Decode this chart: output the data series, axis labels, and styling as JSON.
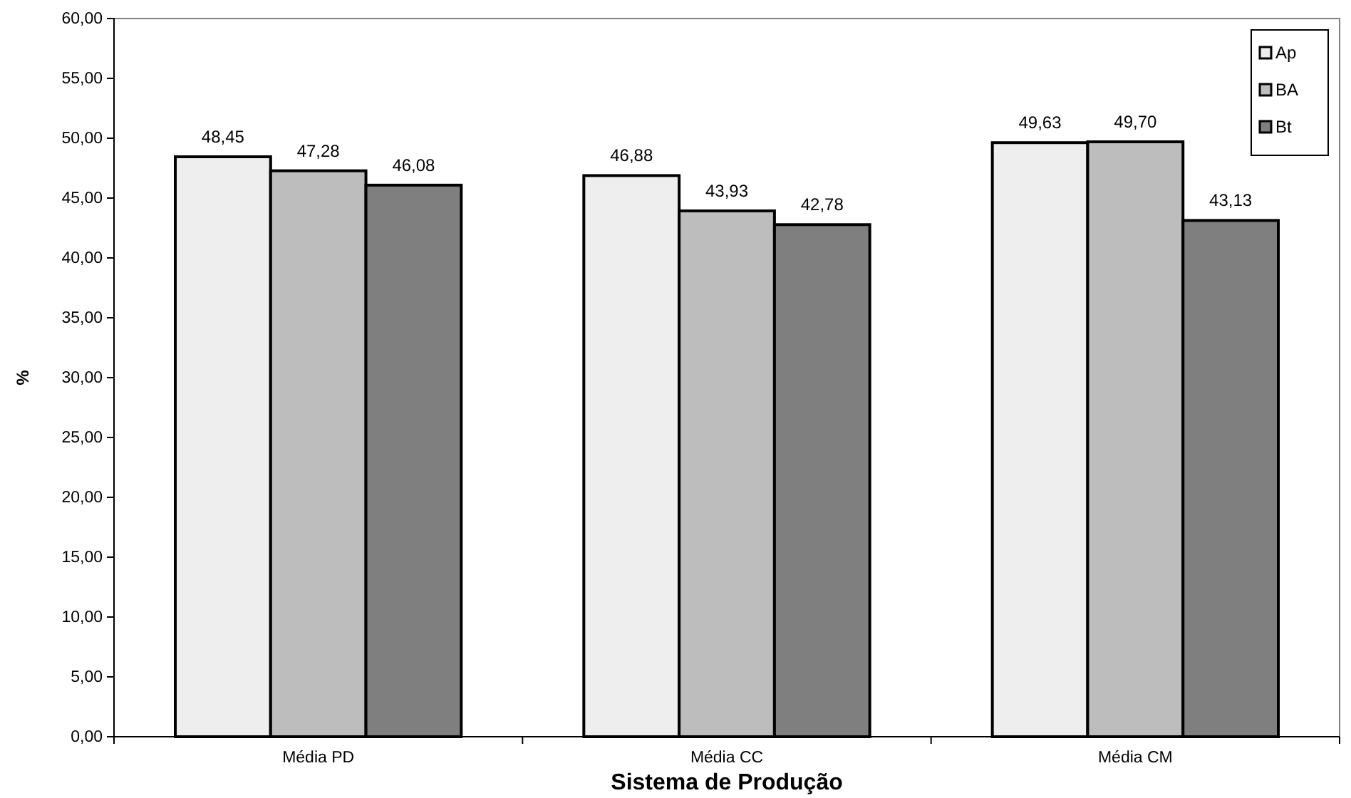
{
  "chart_data": {
    "type": "bar",
    "xlabel": "Sistema de Produção",
    "ylabel": "%",
    "categories": [
      "Média  PD",
      "Média  CC",
      "Média  CM"
    ],
    "series": [
      {
        "name": "Ap",
        "color": "#eeeeee",
        "values": [
          48.45,
          46.88,
          49.63
        ],
        "value_labels": [
          "48,45",
          "46,88",
          "49,63"
        ]
      },
      {
        "name": "BA",
        "color": "#bdbdbd",
        "values": [
          47.28,
          43.93,
          49.7
        ],
        "value_labels": [
          "47,28",
          "43,93",
          "49,70"
        ]
      },
      {
        "name": "Bt",
        "color": "#7f7f7f",
        "values": [
          46.08,
          42.78,
          43.13
        ],
        "value_labels": [
          "46,08",
          "42,78",
          "43,13"
        ]
      }
    ],
    "ylim": [
      0,
      60
    ],
    "yticks": [
      {
        "value": 0,
        "label": "0,00"
      },
      {
        "value": 5,
        "label": "5,00"
      },
      {
        "value": 10,
        "label": "10,00"
      },
      {
        "value": 15,
        "label": "15,00"
      },
      {
        "value": 20,
        "label": "20,00"
      },
      {
        "value": 25,
        "label": "25,00"
      },
      {
        "value": 30,
        "label": "30,00"
      },
      {
        "value": 35,
        "label": "35,00"
      },
      {
        "value": 40,
        "label": "40,00"
      },
      {
        "value": 45,
        "label": "45,00"
      },
      {
        "value": 50,
        "label": "50,00"
      },
      {
        "value": 55,
        "label": "55,00"
      },
      {
        "value": 60,
        "label": "60,00"
      }
    ],
    "grid": false,
    "legend": "top right"
  }
}
